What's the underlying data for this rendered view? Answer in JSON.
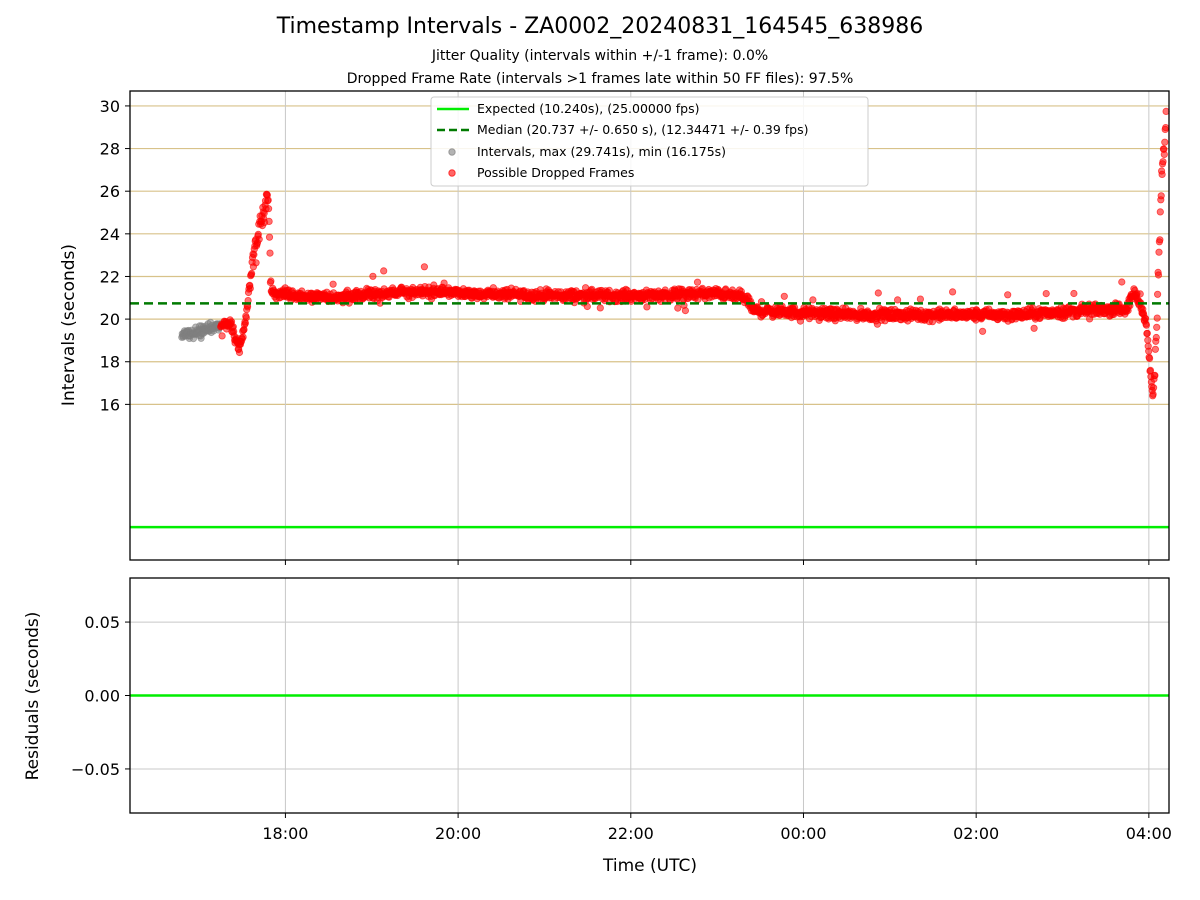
{
  "title": "Timestamp Intervals - ZA0002_20240831_164545_638986",
  "subtitle_line1": "Jitter Quality (intervals within +/-1 frame): 0.0%",
  "subtitle_line2": "Dropped Frame Rate (intervals >1 frames late within 50 FF files): 97.5%",
  "colors": {
    "expected": "#00ee00",
    "median": "#007a00",
    "intervals": "#808080",
    "dropped": "#ff0000",
    "grid_main": "#d8c28a",
    "grid_v": "#c8c8c8"
  },
  "chart_data": [
    {
      "type": "scatter",
      "panel": "intervals",
      "ylabel": "Intervals (seconds)",
      "ylim": [
        8.7,
        30.7
      ],
      "yticks": [
        16,
        18,
        20,
        22,
        24,
        26,
        28,
        30
      ],
      "xlim": [
        "16:12",
        "04:14"
      ],
      "xticks": [
        "18:00",
        "20:00",
        "22:00",
        "00:00",
        "02:00",
        "04:00"
      ],
      "grid": "horizontal-at-ticks-and-vertical-at-ticks",
      "legend_placement": "upper-center",
      "legend": [
        "Expected (10.240s), (25.00000 fps)",
        "Median (20.737 +/- 0.650 s), (12.34471 +/- 0.39 fps)",
        "Intervals, max (29.741s), min (16.175s)",
        "Possible Dropped Frames"
      ],
      "expected_value": 10.24,
      "median_value": 20.737,
      "max_interval": 29.741,
      "min_interval": 16.175,
      "trend": [
        {
          "time": "16:48",
          "value": 19.2
        },
        {
          "time": "17:05",
          "value": 19.5
        },
        {
          "time": "17:15",
          "value": 19.7
        },
        {
          "time": "17:22",
          "value": 19.8
        },
        {
          "time": "17:28",
          "value": 18.5
        },
        {
          "time": "17:32",
          "value": 19.8
        },
        {
          "time": "17:37",
          "value": 22.5
        },
        {
          "time": "17:43",
          "value": 24.6
        },
        {
          "time": "17:48",
          "value": 25.8
        },
        {
          "time": "17:50",
          "value": 21.2
        },
        {
          "time": "18:30",
          "value": 21.0
        },
        {
          "time": "19:30",
          "value": 21.3
        },
        {
          "time": "21:00",
          "value": 21.1
        },
        {
          "time": "22:00",
          "value": 21.1
        },
        {
          "time": "23:00",
          "value": 21.2
        },
        {
          "time": "23:20",
          "value": 21.0
        },
        {
          "time": "23:25",
          "value": 20.4
        },
        {
          "time": "00:30",
          "value": 20.2
        },
        {
          "time": "01:30",
          "value": 20.2
        },
        {
          "time": "02:30",
          "value": 20.2
        },
        {
          "time": "03:15",
          "value": 20.4
        },
        {
          "time": "03:45",
          "value": 20.5
        },
        {
          "time": "03:50",
          "value": 21.3
        },
        {
          "time": "03:58",
          "value": 20.0
        },
        {
          "time": "04:01",
          "value": 17.5
        },
        {
          "time": "04:03",
          "value": 16.4
        },
        {
          "time": "04:05",
          "value": 18.5
        },
        {
          "time": "04:07",
          "value": 23.0
        },
        {
          "time": "04:09",
          "value": 26.5
        },
        {
          "time": "04:12",
          "value": 29.5
        }
      ]
    },
    {
      "type": "line",
      "panel": "residuals",
      "xlabel": "Time (UTC)",
      "ylabel": "Residuals (seconds)",
      "ylim": [
        -0.08,
        0.08
      ],
      "yticks": [
        "0.05",
        "0.00",
        "−0.05"
      ],
      "ytick_values": [
        0.05,
        0.0,
        -0.05
      ],
      "xticks": [
        "18:00",
        "20:00",
        "22:00",
        "00:00",
        "02:00",
        "04:00"
      ],
      "residual_value": 0.0
    }
  ]
}
